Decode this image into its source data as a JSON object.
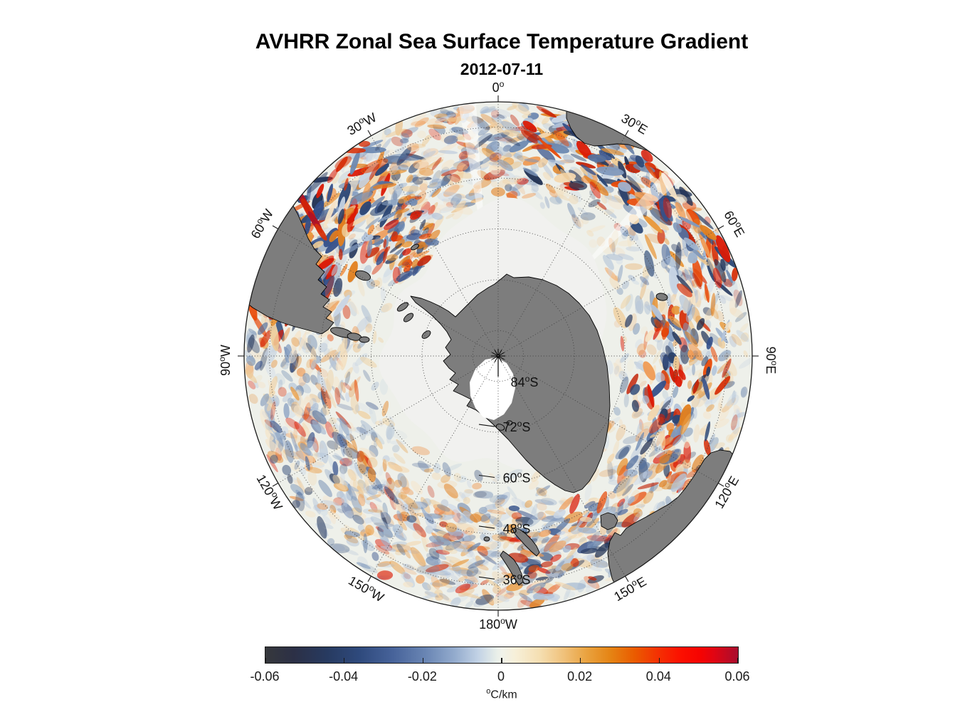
{
  "title": "AVHRR Zonal Sea Surface Temperature Gradient",
  "subtitle": "2012-07-11",
  "map": {
    "ocean_color": "#eef0ea",
    "ice_color": "#f1f1ef",
    "land_color": "#7d7d7d",
    "outline_color": "#000000",
    "graticule_color": "#3f3f3f",
    "meridian_labels": [
      "0°",
      "30°W",
      "60°W",
      "90°W",
      "120°W",
      "150°W",
      "180°W",
      "150°E",
      "120°E",
      "90°E",
      "60°E",
      "30°E"
    ],
    "parallel_labels": [
      "84°S",
      "72°S",
      "60°S",
      "48°S",
      "36°S"
    ]
  },
  "colorbar": {
    "ticks": [
      "-0.06",
      "-0.04",
      "-0.02",
      "0",
      "0.02",
      "0.04",
      "0.06"
    ],
    "unit": "°C/km",
    "gradient": [
      [
        0,
        "#36383c"
      ],
      [
        0.06,
        "#2c3046"
      ],
      [
        0.13,
        "#273a60"
      ],
      [
        0.2,
        "#2f4a7d"
      ],
      [
        0.27,
        "#47639a"
      ],
      [
        0.34,
        "#6a86b4"
      ],
      [
        0.4,
        "#93abcd"
      ],
      [
        0.45,
        "#c2d2e5"
      ],
      [
        0.49,
        "#e9efe9"
      ],
      [
        0.5,
        "#f0f2ea"
      ],
      [
        0.53,
        "#f7efd8"
      ],
      [
        0.58,
        "#f5dfb2"
      ],
      [
        0.63,
        "#f0c27c"
      ],
      [
        0.68,
        "#e9a23f"
      ],
      [
        0.73,
        "#e58414"
      ],
      [
        0.78,
        "#ea5c00"
      ],
      [
        0.83,
        "#f43103"
      ],
      [
        0.88,
        "#fc0f00"
      ],
      [
        0.92,
        "#f60301"
      ],
      [
        0.95,
        "#e00513"
      ],
      [
        1,
        "#a80d2e"
      ]
    ]
  },
  "chart_data": {
    "type": "heatmap",
    "title": "AVHRR Zonal Sea Surface Temperature Gradient",
    "subtitle": "2012-07-11",
    "projection": "south polar stereographic, South Pole centered, 0° longitude at top, outer limit ~30°S",
    "angular_axis": {
      "name": "longitude",
      "ticks": [
        "0°",
        "30°W",
        "60°W",
        "90°W",
        "120°W",
        "150°W",
        "180°W",
        "150°E",
        "120°E",
        "90°E",
        "60°E",
        "30°E"
      ]
    },
    "radial_axis": {
      "name": "latitude",
      "ticks": [
        "84°S",
        "72°S",
        "60°S",
        "48°S",
        "36°S"
      ]
    },
    "colorbar": {
      "label": "°C/km",
      "min": -0.06,
      "max": 0.06,
      "ticks": [
        -0.06,
        -0.04,
        -0.02,
        0,
        0.02,
        0.04,
        0.06
      ],
      "palette": "dark gray-blue → white → orange → dark red"
    },
    "grid": "dotted graticule: meridians every 30°, parallels every 12°",
    "legend_position": "horizontal colorbar at bottom",
    "field_description": "mesoscale eddy streaks of positive (red/orange) and negative (blue/navy) zonal SST gradient over the Southern Ocean; strongest near Brazil-Malvinas confluence, Agulhas Return Current and along the Antarctic Circumpolar Current; dark gray continents (Antarctica, South America, southern Africa, Australia, New Zealand); pale gray ring of sea-ice/no-data around Antarctica; white Ross Ice Shelf"
  }
}
